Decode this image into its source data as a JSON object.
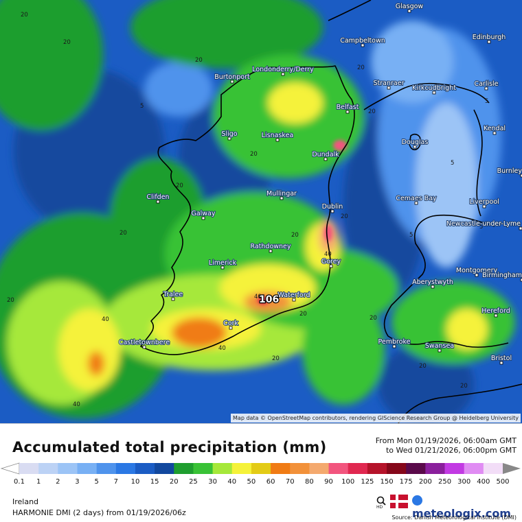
{
  "map": {
    "cities": [
      {
        "name": "Glasgow"
      },
      {
        "name": "Edinburgh"
      },
      {
        "name": "Campbeltown"
      },
      {
        "name": "Burtonport"
      },
      {
        "name": "Londonderry/Derry"
      },
      {
        "name": "Stranraer"
      },
      {
        "name": "Kirkcudbright"
      },
      {
        "name": "Carlisle"
      },
      {
        "name": "Belfast"
      },
      {
        "name": "Kendal"
      },
      {
        "name": "Sligo"
      },
      {
        "name": "Lisnaskea"
      },
      {
        "name": "Douglas"
      },
      {
        "name": "Dundalk"
      },
      {
        "name": "Burnley"
      },
      {
        "name": "Clifden"
      },
      {
        "name": "Mullingar"
      },
      {
        "name": "Cemaes Bay"
      },
      {
        "name": "Liverpool"
      },
      {
        "name": "Galway"
      },
      {
        "name": "Dublin"
      },
      {
        "name": "Newcastle-under-Lyme"
      },
      {
        "name": "Rathdowney"
      },
      {
        "name": "Limerick"
      },
      {
        "name": "Gorey"
      },
      {
        "name": "Montgomery"
      },
      {
        "name": "Birmingham"
      },
      {
        "name": "Aberystwyth"
      },
      {
        "name": "Tralee"
      },
      {
        "name": "Waterford"
      },
      {
        "name": "Hereford"
      },
      {
        "name": "Cork"
      },
      {
        "name": "Castletownbere"
      },
      {
        "name": "Pembroke"
      },
      {
        "name": "Swansea"
      },
      {
        "name": "Bristol"
      }
    ],
    "max_value_label": "106",
    "attribution": "Map data © OpenStreetMap contributors, rendering GIScience Research Group @ Heidelberg University"
  },
  "legend": {
    "title": "Accumulated total precipitation (mm)",
    "from": "From Mon 01/19/2026, 06:00am GMT",
    "to": "to Wed 01/21/2026, 06:00pm GMT",
    "scale": [
      {
        "v": "0.1",
        "c": "#d9dcf2"
      },
      {
        "v": "1",
        "c": "#bcd2f5"
      },
      {
        "v": "2",
        "c": "#9cc4f6"
      },
      {
        "v": "3",
        "c": "#78b0f4"
      },
      {
        "v": "5",
        "c": "#4f93ec"
      },
      {
        "v": "7",
        "c": "#2b78e4"
      },
      {
        "v": "10",
        "c": "#1b5cc4"
      },
      {
        "v": "15",
        "c": "#12489e"
      },
      {
        "v": "20",
        "c": "#1f9e2f"
      },
      {
        "v": "25",
        "c": "#39c236"
      },
      {
        "v": "30",
        "c": "#a6e83a"
      },
      {
        "v": "40",
        "c": "#f5f23a"
      },
      {
        "v": "50",
        "c": "#e3cb16"
      },
      {
        "v": "60",
        "c": "#f07b14"
      },
      {
        "v": "70",
        "c": "#f2913a"
      },
      {
        "v": "80",
        "c": "#f4a96e"
      },
      {
        "v": "90",
        "c": "#f2557e"
      },
      {
        "v": "100",
        "c": "#e02850"
      },
      {
        "v": "125",
        "c": "#b5132a"
      },
      {
        "v": "150",
        "c": "#85071a"
      },
      {
        "v": "175",
        "c": "#5a0a4a"
      },
      {
        "v": "200",
        "c": "#8a1f9c"
      },
      {
        "v": "250",
        "c": "#c23ae3"
      },
      {
        "v": "300",
        "c": "#e08cf3"
      },
      {
        "v": "400",
        "c": "#f2ddf7"
      },
      {
        "v": "500",
        "c": "#cfcfcf"
      }
    ],
    "region": "Ireland",
    "model": "HARMONIE DMI (2 days)  from  01/19/2026/06z",
    "brand": "meteologix.com",
    "source": "Source: Danish Meteorological Institute (DMI)"
  }
}
